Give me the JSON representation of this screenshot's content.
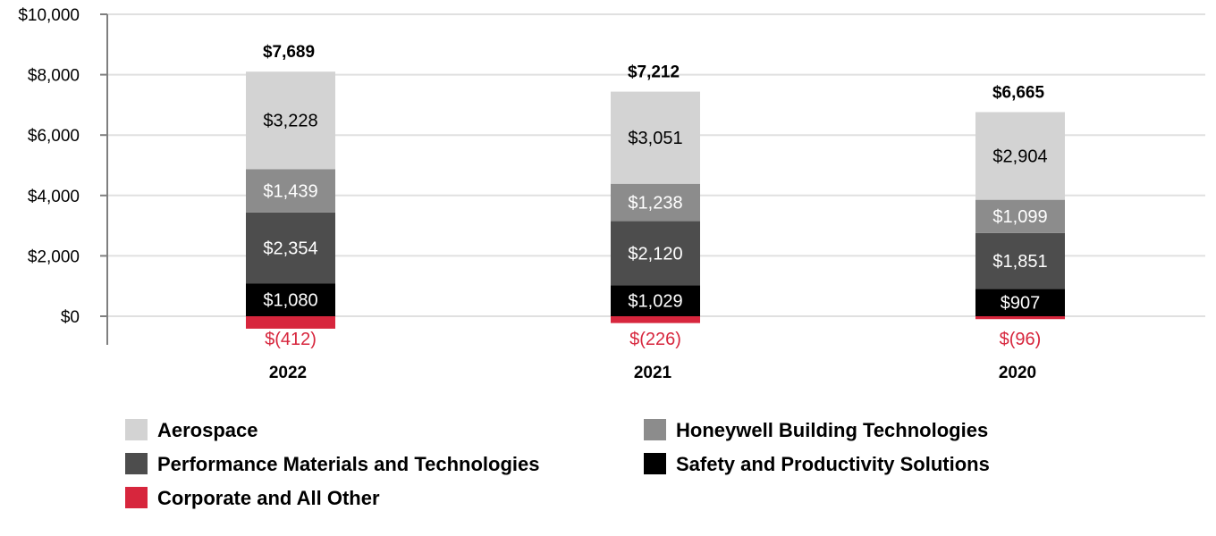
{
  "chart_data": {
    "type": "bar",
    "stacked": true,
    "categories": [
      "2022",
      "2021",
      "2020"
    ],
    "ylim": [
      0,
      10000
    ],
    "yticks": [
      "$10,000",
      "$8,000",
      "$6,000",
      "$4,000",
      "$2,000",
      "$0"
    ],
    "ytick_values": [
      10000,
      8000,
      6000,
      4000,
      2000,
      0
    ],
    "grid": true,
    "legend_position": "bottom",
    "totals": [
      {
        "value": 7689,
        "label": "$7,689"
      },
      {
        "value": 7212,
        "label": "$7,212"
      },
      {
        "value": 6665,
        "label": "$6,665"
      }
    ],
    "series": [
      {
        "name": "Corporate and All Other",
        "color": "#d7263d",
        "label_color": "#d7263d",
        "values": [
          -412,
          -226,
          -96
        ],
        "labels": [
          "$(412)",
          "$(226)",
          "$(96)"
        ]
      },
      {
        "name": "Safety and Productivity Solutions",
        "color": "#000000",
        "label_color": "#ffffff",
        "values": [
          1080,
          1029,
          907
        ],
        "labels": [
          "$1,080",
          "$1,029",
          "$907"
        ]
      },
      {
        "name": "Performance Materials and Technologies",
        "color": "#4d4d4d",
        "label_color": "#ffffff",
        "values": [
          2354,
          2120,
          1851
        ],
        "labels": [
          "$2,354",
          "$2,120",
          "$1,851"
        ]
      },
      {
        "name": "Honeywell Building Technologies",
        "color": "#8c8c8c",
        "label_color": "#ffffff",
        "values": [
          1439,
          1238,
          1099
        ],
        "labels": [
          "$1,439",
          "$1,238",
          "$1,099"
        ]
      },
      {
        "name": "Aerospace",
        "color": "#d3d3d3",
        "label_color": "#000000",
        "values": [
          3228,
          3051,
          2904
        ],
        "labels": [
          "$3,228",
          "$3,051",
          "$2,904"
        ]
      }
    ],
    "legend": [
      {
        "name": "Aerospace",
        "color": "#d3d3d3"
      },
      {
        "name": "Honeywell Building Technologies",
        "color": "#8c8c8c"
      },
      {
        "name": "Performance Materials and Technologies",
        "color": "#4d4d4d"
      },
      {
        "name": "Safety and Productivity Solutions",
        "color": "#000000"
      },
      {
        "name": "Corporate and All Other",
        "color": "#d7263d"
      }
    ]
  }
}
